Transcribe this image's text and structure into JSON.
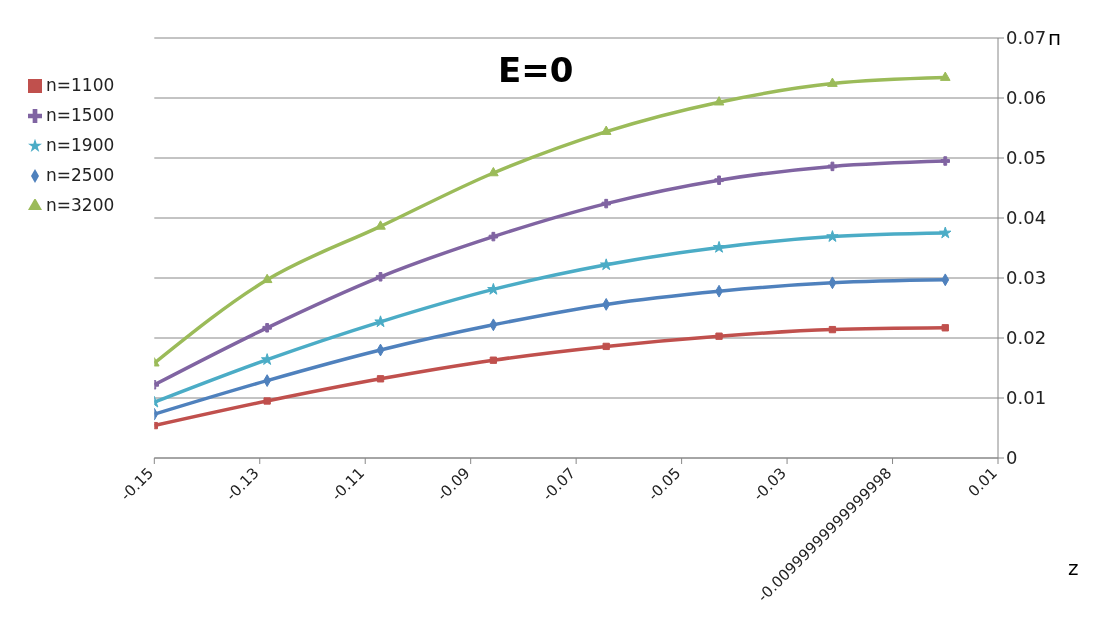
{
  "chart_data": {
    "type": "line",
    "title": "E=0",
    "xlabel": "z",
    "ylabel": "п",
    "x": [
      -0.15,
      -0.1286,
      -0.1071,
      -0.0857,
      -0.0643,
      -0.0429,
      -0.0214,
      0
    ],
    "series": [
      {
        "name": "n=1100",
        "color": "#c0504d",
        "marker": "square",
        "values": [
          0.0054,
          0.0095,
          0.0132,
          0.0163,
          0.0186,
          0.0203,
          0.0214,
          0.0217
        ]
      },
      {
        "name": "n=3200",
        "color": "#9bbb59",
        "marker": "triangle",
        "values": [
          0.0158,
          0.0297,
          0.0386,
          0.0475,
          0.0544,
          0.0593,
          0.0624,
          0.0634
        ]
      },
      {
        "name": "n=1500",
        "color": "#8064a2",
        "marker": "cross",
        "values": [
          0.0122,
          0.0217,
          0.0302,
          0.0369,
          0.0424,
          0.0463,
          0.0486,
          0.0495
        ]
      },
      {
        "name": "n=1900",
        "color": "#4bacc6",
        "marker": "star",
        "values": [
          0.0093,
          0.0164,
          0.0227,
          0.0281,
          0.0322,
          0.0351,
          0.0369,
          0.0375
        ]
      },
      {
        "name": "n=2500",
        "color": "#4f81bd",
        "marker": "diamond",
        "values": [
          0.0073,
          0.0129,
          0.018,
          0.0222,
          0.0256,
          0.0278,
          0.0292,
          0.0297
        ]
      }
    ],
    "xlim": [
      -0.15,
      0.01
    ],
    "xticks": [
      -0.15,
      -0.13,
      -0.11,
      -0.09,
      -0.07,
      -0.05,
      -0.03,
      {
        "value": -0.01,
        "label": "-0.00999999999999998"
      },
      0.01
    ],
    "ylim": [
      0,
      0.07
    ],
    "yticks": [
      0,
      0.01,
      0.02,
      0.03,
      0.04,
      0.05,
      0.06,
      0.07
    ],
    "grid": "y",
    "legend": "top left",
    "line_style": "solid"
  }
}
